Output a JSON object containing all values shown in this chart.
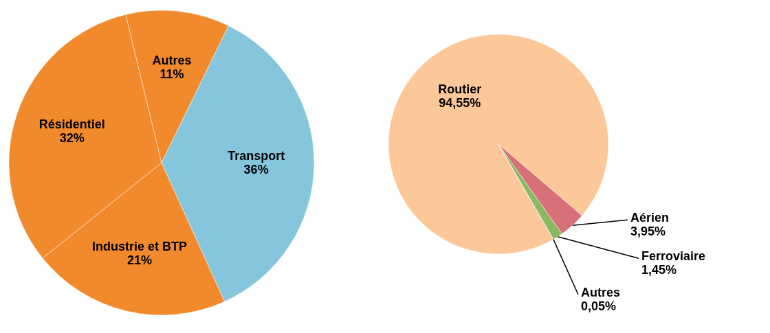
{
  "chart_data": [
    {
      "type": "pie",
      "categories": [
        "Transport",
        "Industrie et BTP",
        "Résidentiel",
        "Autres"
      ],
      "values": [
        36,
        21,
        32,
        11
      ],
      "colors": [
        "#86c6dc",
        "#f08a2c",
        "#f08a2c",
        "#f08a2c"
      ],
      "value_labels": [
        "36%",
        "21%",
        "32%",
        "11%"
      ]
    },
    {
      "type": "pie",
      "categories": [
        "Routier",
        "Aérien",
        "Ferroviaire",
        "Autres"
      ],
      "values": [
        94.55,
        3.95,
        1.45,
        0.05
      ],
      "colors": [
        "#fcc899",
        "#d8707a",
        "#8cb860",
        "#5b7fa0"
      ],
      "value_labels": [
        "94,55%",
        "3,95%",
        "1,45%",
        "0,05%"
      ]
    }
  ]
}
